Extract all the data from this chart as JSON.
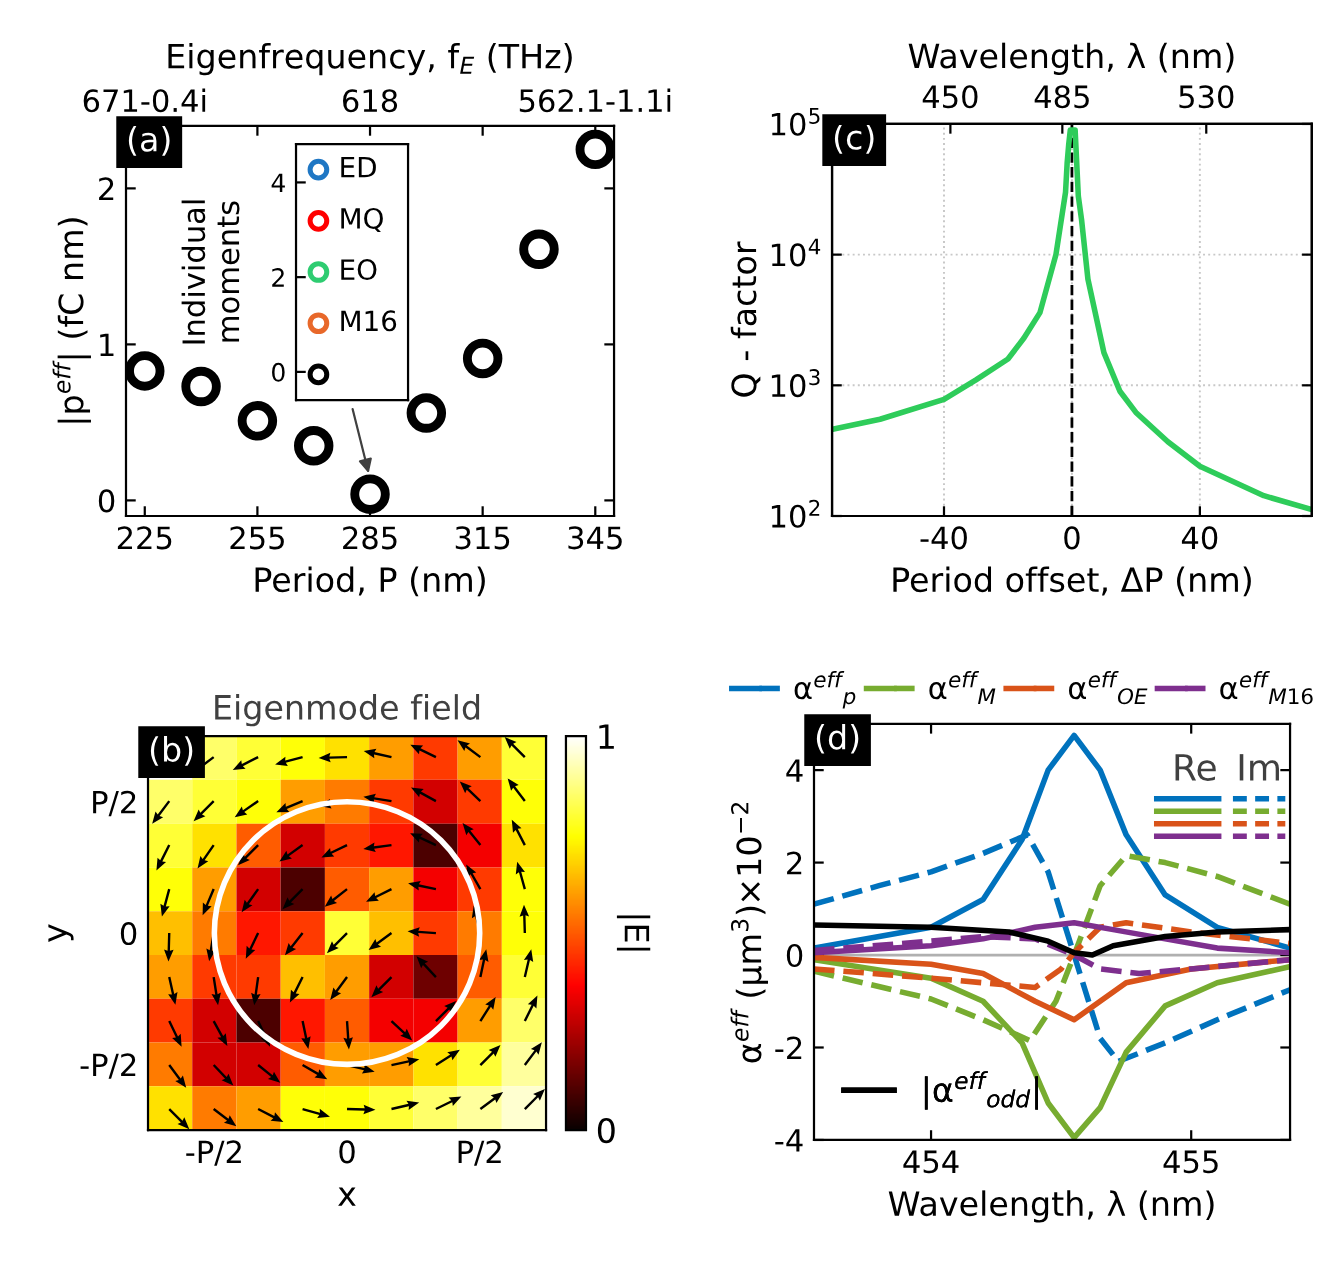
{
  "chart_data": [
    {
      "type": "scatter",
      "x": [
        225,
        240,
        255,
        270,
        285,
        300,
        315,
        330,
        345
      ],
      "values": [
        0.83,
        0.73,
        0.51,
        0.35,
        0.04,
        0.56,
        0.91,
        1.61,
        2.25
      ],
      "color": "#000000",
      "marker": "circle",
      "xlim": [
        220,
        350
      ],
      "ylim": [
        -0.1,
        2.4
      ],
      "xticks": [
        225,
        255,
        285,
        315,
        345
      ],
      "yticks": [
        0,
        1,
        2
      ],
      "xlabel": "Period, P (nm)",
      "ylabel": "|p$^{eff}$| (fC nm)",
      "x2label": "Eigenfrequency, f$_{E}$ (THz)",
      "annotations": [
        "(a)",
        "671-0.4i",
        "618",
        "562.1-1.1i"
      ]
    },
    {
      "type": "other",
      "annotations": [
        "ED",
        "MQ",
        "EO",
        "M16",
        "0",
        "2",
        "4"
      ],
      "colors": [
        "#1f77c4",
        "#ff0000",
        "#2ecc71",
        "#e8682a",
        "#000000"
      ],
      "ylabel": "Individual\nmoments"
    },
    {
      "type": "line",
      "x": [
        -75,
        -60,
        -40,
        -30,
        -20,
        -15,
        -10,
        -5,
        -2,
        -1.5,
        -1,
        -0.5,
        0,
        0.5,
        1,
        2,
        3,
        5,
        10,
        15,
        20,
        30,
        40,
        60,
        75
      ],
      "values": [
        460,
        550,
        780,
        1100,
        1590,
        2300,
        3600,
        10000,
        30000,
        50000,
        70000,
        90000,
        90000,
        90000,
        90000,
        28000,
        18600,
        6500,
        1780,
        900,
        620,
        370,
        240,
        143,
        112
      ],
      "color": "#2ecc5a",
      "log": "y",
      "xlim": [
        -75,
        75
      ],
      "ylim": [
        100,
        100000
      ],
      "xticks": [
        -40,
        0,
        40
      ],
      "yticks": [
        {
          "value": 100,
          "label": "10$^{2}$"
        },
        {
          "value": 1000,
          "label": "10$^{3}$"
        },
        {
          "value": 10000,
          "label": "10$^{4}$"
        },
        {
          "value": 100000,
          "label": "10$^{5}$"
        }
      ],
      "x2lim": [
        413,
        563
      ],
      "x2ticks": [
        450,
        485,
        530
      ],
      "xlabel": "Period offset, ΔP (nm)",
      "ylabel": "Q - factor",
      "x2label": "Wavelength, λ (nm)",
      "grid": true,
      "ref_lines": [
        {
          "axis": "x",
          "value": 0,
          "color": "#000000",
          "line_style": "dashed"
        }
      ],
      "annotations": [
        "(c)"
      ]
    },
    {
      "type": "heatmap",
      "title": "Eigenmode field",
      "categories": [
        null,
        "-P/2",
        null,
        null,
        "0",
        null,
        null,
        "P/2",
        null
      ],
      "y_categories": [
        null,
        "P/2",
        null,
        null,
        "0",
        null,
        null,
        "-P/2",
        null
      ],
      "xlabel": "x",
      "ylabel": "y",
      "clabel": "|E|",
      "clim": [
        0,
        1
      ],
      "cticks": [
        0,
        1
      ],
      "annotations": [
        "(b)"
      ],
      "cells": [
        [
          null,
          0.85,
          0.8,
          0.75,
          0.7,
          0.6,
          0.45,
          0.6,
          0.8
        ],
        [
          0.85,
          0.8,
          0.75,
          0.6,
          0.55,
          0.45,
          0.3,
          0.45,
          0.75
        ],
        [
          0.8,
          0.7,
          0.5,
          0.3,
          0.45,
          0.4,
          0.1,
          0.35,
          0.7
        ],
        [
          0.75,
          0.6,
          0.3,
          0.1,
          0.5,
          0.6,
          0.35,
          0.45,
          0.75
        ],
        [
          0.65,
          0.55,
          0.4,
          0.45,
          0.8,
          0.65,
          0.45,
          0.55,
          0.75
        ],
        [
          0.6,
          0.45,
          0.45,
          0.65,
          0.6,
          0.3,
          0.15,
          0.5,
          0.8
        ],
        [
          0.45,
          0.3,
          0.1,
          0.4,
          0.5,
          0.35,
          0.35,
          0.6,
          0.85
        ],
        [
          0.55,
          0.3,
          0.3,
          0.5,
          0.6,
          0.6,
          0.7,
          0.8,
          0.9
        ],
        [
          0.7,
          0.55,
          0.6,
          0.75,
          0.75,
          0.8,
          0.85,
          0.9,
          0.95
        ]
      ]
    },
    {
      "type": "line",
      "xlim": [
        453.55,
        455.38
      ],
      "ylim": [
        -4,
        5
      ],
      "xticks": [
        454,
        455
      ],
      "yticks": [
        -4,
        -2,
        0,
        2,
        4
      ],
      "xlabel": "Wavelength, λ (nm)",
      "ylabel": "α$^{eff}$ (μm$^{3}$)×10$^{−2}$",
      "legend": "top",
      "ref_lines": [
        {
          "axis": "y",
          "value": 0,
          "color": "#b0b0b0",
          "line_style": "solid"
        }
      ],
      "annotations": [
        "(d)",
        "Re",
        "Im"
      ],
      "series": [
        {
          "name": "α$^{eff}$$_{p}$",
          "color": "#0072bd",
          "x": [
            453.55,
            454.0,
            454.2,
            454.35,
            454.45,
            454.55,
            454.65,
            454.75,
            454.9,
            455.1,
            455.38
          ],
          "values": [
            0.15,
            0.6,
            1.2,
            2.5,
            4.0,
            4.75,
            4.0,
            2.6,
            1.3,
            0.6,
            0.15
          ]
        },
        {
          "color": "#0072bd",
          "line_style": "dashed",
          "x": [
            453.55,
            453.8,
            454.0,
            454.2,
            454.37,
            454.45,
            454.55,
            454.65,
            454.72,
            454.9,
            455.1,
            455.38
          ],
          "values": [
            1.1,
            1.5,
            1.8,
            2.2,
            2.6,
            1.8,
            0,
            -1.8,
            -2.3,
            -1.9,
            -1.4,
            -0.75
          ]
        },
        {
          "name": "α$^{eff}$$_{M}$",
          "color": "#77ac30",
          "x": [
            453.55,
            454.0,
            454.2,
            454.35,
            454.45,
            454.55,
            454.65,
            454.75,
            454.9,
            455.1,
            455.38
          ],
          "values": [
            -0.1,
            -0.5,
            -1.0,
            -1.9,
            -3.2,
            -3.95,
            -3.3,
            -2.1,
            -1.1,
            -0.6,
            -0.25
          ]
        },
        {
          "color": "#77ac30",
          "line_style": "dashed",
          "x": [
            453.55,
            454.0,
            454.2,
            454.38,
            454.48,
            454.55,
            454.65,
            454.75,
            454.9,
            455.1,
            455.38
          ],
          "values": [
            -0.35,
            -0.95,
            -1.4,
            -1.85,
            -1.0,
            0,
            1.5,
            2.15,
            2.0,
            1.7,
            1.1
          ]
        },
        {
          "name": "α$^{eff}$$_{OE}$",
          "color": "#d95319",
          "x": [
            453.55,
            454.0,
            454.2,
            454.4,
            454.55,
            454.65,
            454.75,
            455.0,
            455.38
          ],
          "values": [
            -0.05,
            -0.2,
            -0.4,
            -1.0,
            -1.4,
            -1.0,
            -0.6,
            -0.3,
            -0.1
          ]
        },
        {
          "color": "#d95319",
          "line_style": "dashed",
          "x": [
            453.55,
            454.0,
            454.2,
            454.4,
            454.5,
            454.55,
            454.65,
            454.75,
            455.0,
            455.38
          ],
          "values": [
            -0.3,
            -0.5,
            -0.6,
            -0.7,
            -0.3,
            0.05,
            0.6,
            0.7,
            0.5,
            0.25
          ]
        },
        {
          "name": "α$^{eff}$$_{M16}$",
          "color": "#7e2f8e",
          "x": [
            453.55,
            454.0,
            454.2,
            454.4,
            454.55,
            454.7,
            454.9,
            455.1,
            455.38
          ],
          "values": [
            0.05,
            0.2,
            0.35,
            0.6,
            0.7,
            0.55,
            0.35,
            0.15,
            0.05
          ]
        },
        {
          "color": "#7e2f8e",
          "line_style": "dashed",
          "x": [
            453.55,
            454.0,
            454.2,
            454.4,
            454.55,
            454.65,
            454.8,
            455.0,
            455.38
          ],
          "values": [
            0.1,
            0.3,
            0.4,
            0.35,
            0,
            -0.3,
            -0.4,
            -0.3,
            -0.1
          ]
        },
        {
          "name": "|α$^{eff}$$_{odd}$|",
          "color": "#000000",
          "x": [
            453.55,
            454.0,
            454.3,
            454.45,
            454.55,
            454.62,
            454.7,
            454.9,
            455.1,
            455.38
          ],
          "values": [
            0.65,
            0.6,
            0.5,
            0.3,
            0.05,
            0.0,
            0.2,
            0.4,
            0.5,
            0.55
          ]
        }
      ]
    }
  ]
}
